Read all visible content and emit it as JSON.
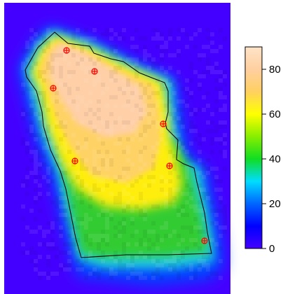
{
  "chart_data": {
    "type": "heatmap",
    "title": "",
    "xlabel": "",
    "ylabel": "",
    "legend_position": "right",
    "colorbar": {
      "min": 0,
      "max": 90,
      "ticks": [
        0,
        20,
        40,
        60,
        80
      ],
      "tick_labels": [
        "0",
        "20",
        "40",
        "60",
        "80"
      ],
      "palette": [
        "#4400ff",
        "#0000ff",
        "#0066ff",
        "#00ddff",
        "#11dd22",
        "#88ee00",
        "#ffff00",
        "#ffd060",
        "#ffcfa0",
        "#ffe4c8"
      ]
    },
    "background_value": 0,
    "boundary": {
      "color": "#000000",
      "polygon": [
        [
          78,
          46
        ],
        [
          97,
          62
        ],
        [
          128,
          66
        ],
        [
          134,
          76
        ],
        [
          158,
          84
        ],
        [
          176,
          88
        ],
        [
          199,
          104
        ],
        [
          219,
          112
        ],
        [
          235,
          118
        ],
        [
          240,
          130
        ],
        [
          240,
          160
        ],
        [
          236,
          176
        ],
        [
          238,
          184
        ],
        [
          254,
          200
        ],
        [
          252,
          228
        ],
        [
          262,
          234
        ],
        [
          277,
          240
        ],
        [
          281,
          260
        ],
        [
          292,
          304
        ],
        [
          296,
          332
        ],
        [
          302,
          362
        ],
        [
          240,
          364
        ],
        [
          180,
          364
        ],
        [
          116,
          368
        ],
        [
          108,
          340
        ],
        [
          100,
          300
        ],
        [
          94,
          270
        ],
        [
          86,
          244
        ],
        [
          72,
          214
        ],
        [
          62,
          180
        ],
        [
          60,
          160
        ],
        [
          52,
          130
        ],
        [
          38,
          110
        ],
        [
          36,
          100
        ],
        [
          54,
          68
        ]
      ]
    },
    "points": {
      "marker": "circle-cross",
      "color": "#ff0000",
      "coords": [
        [
          95,
          72
        ],
        [
          135,
          102
        ],
        [
          76,
          126
        ],
        [
          233,
          177
        ],
        [
          107,
          230
        ],
        [
          242,
          237
        ],
        [
          292,
          344
        ]
      ]
    }
  }
}
